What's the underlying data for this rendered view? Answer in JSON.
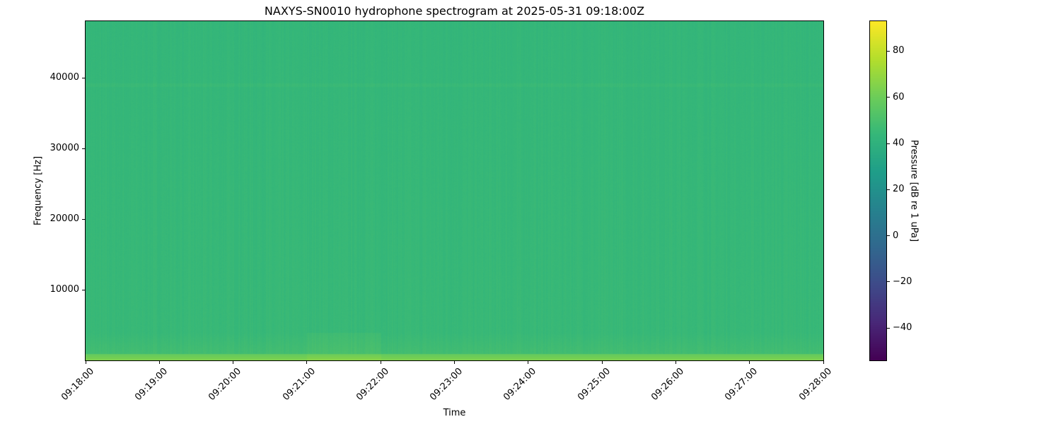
{
  "chart_data": {
    "type": "heatmap",
    "title": "NAXYS-SN0010 hydrophone spectrogram at 2025-05-31 09:18:00Z",
    "xlabel": "Time",
    "ylabel": "Frequency [Hz]",
    "x_ticks": [
      "09:18:00",
      "09:19:00",
      "09:20:00",
      "09:21:00",
      "09:22:00",
      "09:23:00",
      "09:24:00",
      "09:25:00",
      "09:26:00",
      "09:27:00",
      "09:28:00"
    ],
    "xlim": [
      "09:18:00",
      "09:28:00"
    ],
    "y_ticks": [
      10000,
      20000,
      30000,
      40000
    ],
    "ylim": [
      0,
      48000
    ],
    "colormap": "viridis",
    "colorbar": {
      "label": "Pressure [dB re 1 uPa]",
      "ticks": [
        -40,
        -20,
        0,
        20,
        40,
        60,
        80
      ],
      "range": [
        -54,
        93
      ]
    },
    "typical_level_db": 45,
    "low_frequency_level_db": 65,
    "notes_visible": "band near 39000 Hz slightly brighter"
  }
}
